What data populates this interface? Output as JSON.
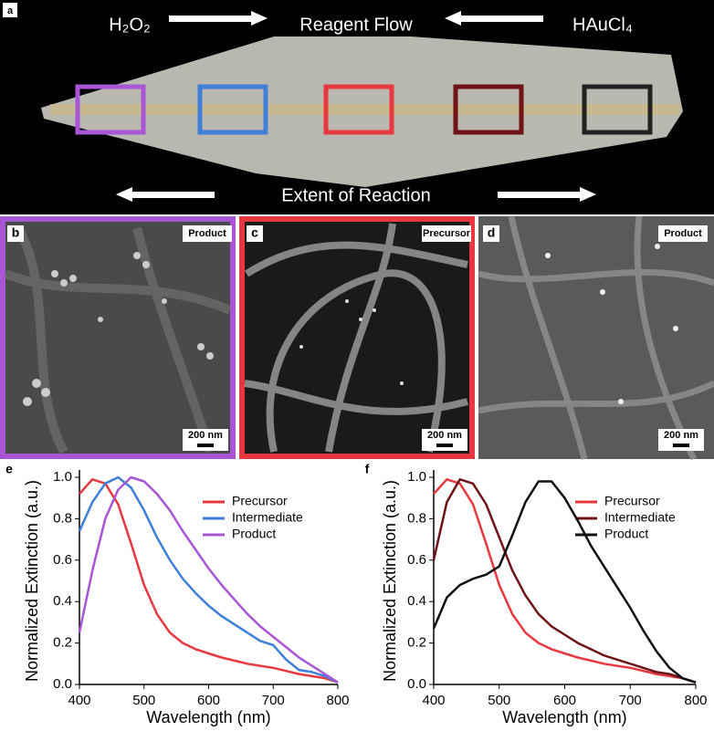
{
  "panel_a": {
    "label": "a",
    "left_reagent": "H₂O₂",
    "right_reagent": "HAuCl₄",
    "flow_label": "Reagent Flow",
    "reaction_label": "Extent of Reaction"
  },
  "sem_panels": [
    {
      "label": "b",
      "tag": "Product",
      "scale": "200 nm"
    },
    {
      "label": "c",
      "tag": "Precursor",
      "scale": "200 nm"
    },
    {
      "label": "d",
      "tag": "Product",
      "scale": "200 nm"
    }
  ],
  "chart_data": [
    {
      "type": "line",
      "label": "e",
      "xlabel": "Wavelength (nm)",
      "ylabel": "Normalized Extinction (a.u.)",
      "x": [
        400,
        420,
        440,
        460,
        480,
        500,
        520,
        540,
        560,
        580,
        600,
        620,
        640,
        660,
        680,
        700,
        720,
        740,
        760,
        780,
        800
      ],
      "xlim": [
        400,
        800
      ],
      "xticks": [
        400,
        500,
        600,
        700,
        800
      ],
      "ylim": [
        0,
        1.0
      ],
      "yticks": [
        {
          "value": 0,
          "label": "0.0"
        },
        0.2,
        0.4,
        0.6,
        0.8,
        {
          "value": 1.0,
          "label": "1.0"
        }
      ],
      "series": [
        {
          "name": "Precursor",
          "color": "#e8383f",
          "values": [
            0.92,
            0.99,
            0.97,
            0.87,
            0.68,
            0.48,
            0.34,
            0.25,
            0.2,
            0.17,
            0.15,
            0.13,
            0.115,
            0.1,
            0.09,
            0.08,
            0.065,
            0.05,
            0.04,
            0.03,
            0.01
          ]
        },
        {
          "name": "Intermediate",
          "color": "#3f7fd8",
          "values": [
            0.74,
            0.88,
            0.97,
            1.0,
            0.95,
            0.84,
            0.71,
            0.6,
            0.51,
            0.44,
            0.38,
            0.33,
            0.29,
            0.25,
            0.21,
            0.19,
            0.12,
            0.07,
            0.06,
            0.04,
            0.01
          ]
        },
        {
          "name": "Product",
          "color": "#a855d6",
          "values": [
            0.25,
            0.55,
            0.8,
            0.94,
            1.0,
            0.98,
            0.92,
            0.84,
            0.74,
            0.65,
            0.56,
            0.48,
            0.41,
            0.34,
            0.28,
            0.23,
            0.18,
            0.13,
            0.09,
            0.05,
            0.01
          ]
        }
      ]
    },
    {
      "type": "line",
      "label": "f",
      "xlabel": "Wavelength (nm)",
      "ylabel": "Normalized Extinction (a.u.)",
      "x": [
        400,
        420,
        440,
        460,
        480,
        500,
        520,
        540,
        560,
        580,
        600,
        620,
        640,
        660,
        680,
        700,
        720,
        740,
        760,
        780,
        800
      ],
      "xlim": [
        400,
        800
      ],
      "xticks": [
        400,
        500,
        600,
        700,
        800
      ],
      "ylim": [
        0,
        1.0
      ],
      "yticks": [
        {
          "value": 0,
          "label": "0.0"
        },
        0.2,
        0.4,
        0.6,
        0.8,
        {
          "value": 1.0,
          "label": "1.0"
        }
      ],
      "series": [
        {
          "name": "Precursor",
          "color": "#e8383f",
          "values": [
            0.92,
            0.99,
            0.97,
            0.87,
            0.68,
            0.48,
            0.34,
            0.25,
            0.2,
            0.17,
            0.15,
            0.13,
            0.115,
            0.1,
            0.09,
            0.08,
            0.065,
            0.05,
            0.04,
            0.03,
            0.01
          ]
        },
        {
          "name": "Intermediate",
          "color": "#6e1418",
          "values": [
            0.6,
            0.88,
            0.99,
            0.97,
            0.87,
            0.71,
            0.55,
            0.43,
            0.34,
            0.28,
            0.24,
            0.2,
            0.17,
            0.14,
            0.12,
            0.1,
            0.08,
            0.06,
            0.05,
            0.03,
            0.01
          ]
        },
        {
          "name": "Product",
          "color": "#111111",
          "values": [
            0.27,
            0.42,
            0.48,
            0.51,
            0.53,
            0.57,
            0.72,
            0.88,
            0.98,
            0.98,
            0.9,
            0.79,
            0.67,
            0.57,
            0.47,
            0.37,
            0.26,
            0.16,
            0.08,
            0.03,
            0.01
          ]
        }
      ]
    }
  ]
}
